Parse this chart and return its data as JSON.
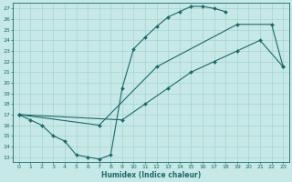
{
  "xlabel": "Humidex (Indice chaleur)",
  "xlim": [
    -0.5,
    23.5
  ],
  "ylim": [
    12.5,
    27.5
  ],
  "xticks": [
    0,
    1,
    2,
    3,
    4,
    5,
    6,
    7,
    8,
    9,
    10,
    11,
    12,
    13,
    14,
    15,
    16,
    17,
    18,
    19,
    20,
    21,
    22,
    23
  ],
  "yticks": [
    13,
    14,
    15,
    16,
    17,
    18,
    19,
    20,
    21,
    22,
    23,
    24,
    25,
    26,
    27
  ],
  "bg_color": "#c6e8e6",
  "grid_color": "#9ecece",
  "line_color": "#1a6b6b",
  "line1_x": [
    0,
    1,
    2,
    3,
    4,
    5,
    6,
    7,
    8,
    9,
    10,
    11,
    12,
    13,
    14,
    15,
    16,
    17,
    18
  ],
  "line1_y": [
    17.0,
    16.5,
    16.0,
    15.0,
    14.5,
    13.2,
    13.0,
    12.8,
    13.2,
    19.5,
    23.2,
    24.3,
    25.3,
    26.2,
    26.7,
    27.2,
    27.2,
    27.0,
    26.7
  ],
  "line2_x": [
    0,
    7,
    12,
    19,
    22,
    23
  ],
  "line2_y": [
    17.0,
    16.0,
    21.5,
    25.5,
    25.5,
    21.5
  ],
  "line3_x": [
    0,
    9,
    11,
    13,
    15,
    17,
    19,
    21,
    23
  ],
  "line3_y": [
    17.0,
    16.5,
    18.0,
    19.5,
    21.0,
    22.0,
    23.0,
    24.0,
    21.5
  ]
}
